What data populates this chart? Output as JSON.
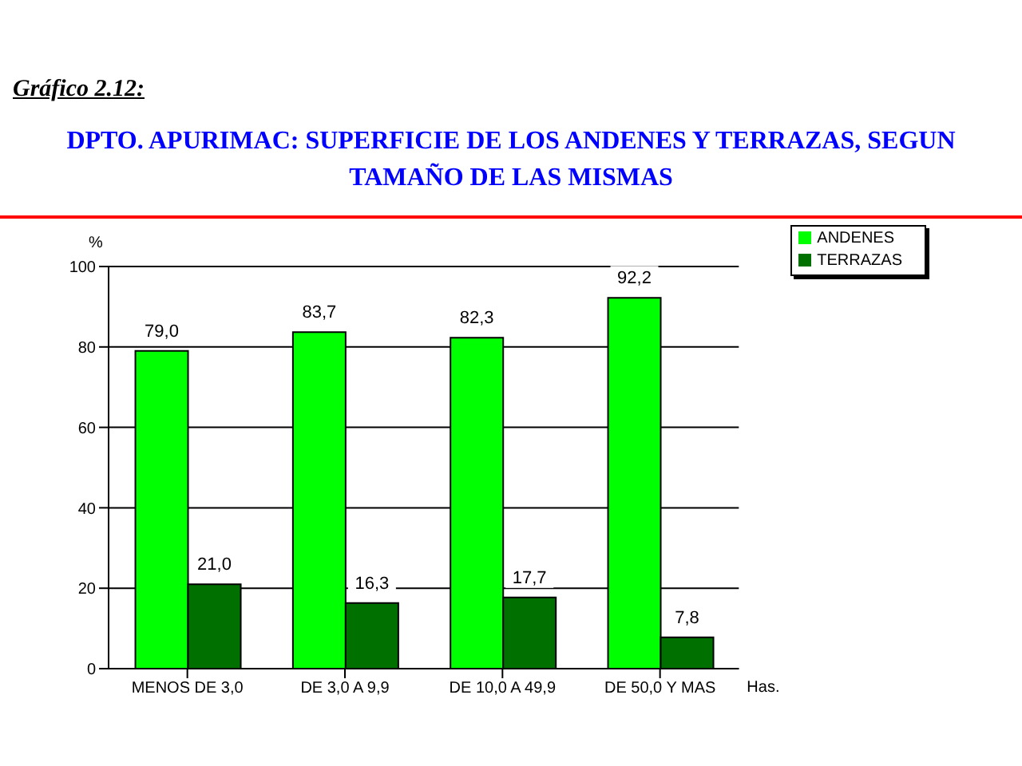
{
  "chart_data": {
    "type": "bar",
    "title": "DPTO. APURIMAC: SUPERFICIE DE LOS ANDENES Y TERRAZAS, SEGUN TAMAÑO DE LAS MISMAS",
    "subtitle": "Gráfico  2.12:",
    "xlabel": "Has.",
    "ylabel": "%",
    "categories": [
      "MENOS DE 3,0",
      "DE 3,0 A 9,9",
      "DE 10,0 A 49,9",
      "DE 50,0 Y MAS"
    ],
    "series": [
      {
        "name": "ANDENES",
        "color": "#00ff00",
        "values": [
          79.0,
          83.7,
          82.3,
          92.2
        ],
        "value_labels": [
          "79,0",
          "83,7",
          "82,3",
          "92,2"
        ]
      },
      {
        "name": "TERRAZAS",
        "color": "#007000",
        "values": [
          21.0,
          16.3,
          17.7,
          7.8
        ],
        "value_labels": [
          "21,0",
          "16,3",
          "17,7",
          "7,8"
        ]
      }
    ],
    "ylim": [
      0,
      100
    ],
    "yticks": [
      0,
      20,
      40,
      60,
      80,
      100
    ],
    "grid": "y",
    "legend": "top right"
  }
}
